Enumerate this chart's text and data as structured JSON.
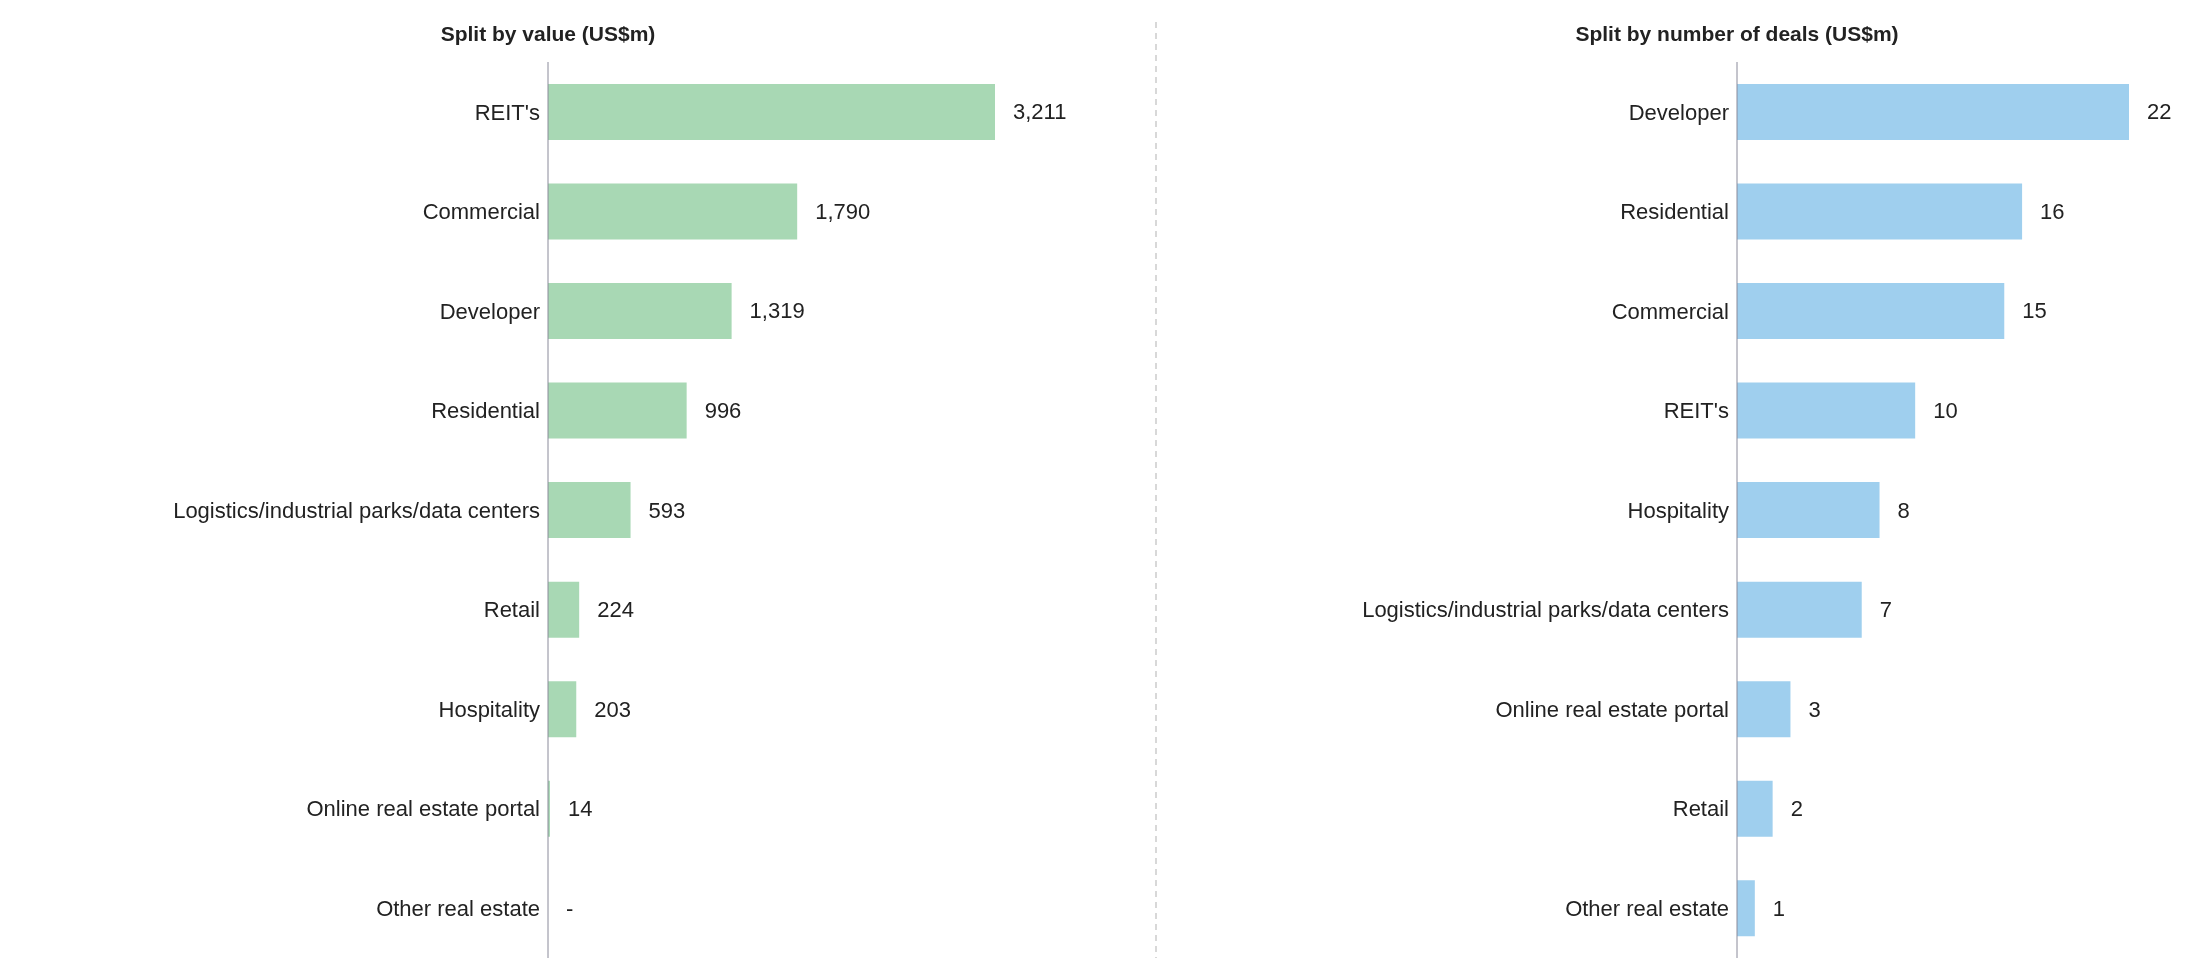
{
  "chart_data": [
    {
      "type": "bar",
      "orientation": "horizontal",
      "title": "Split by value (US$m)",
      "categories": [
        "REIT's",
        "Commercial",
        "Developer",
        "Residential",
        "Logistics/industrial parks/data centers",
        "Retail",
        "Hospitality",
        "Online real estate portal",
        "Other real estate"
      ],
      "values": [
        3211,
        1790,
        1319,
        996,
        593,
        224,
        203,
        14,
        0
      ],
      "value_labels": [
        "3,211",
        "1,790",
        "1,319",
        "996",
        "593",
        "224",
        "203",
        "14",
        "-"
      ],
      "color": "#a8d8b4"
    },
    {
      "type": "bar",
      "orientation": "horizontal",
      "title": "Split by number of deals (US$m)",
      "categories": [
        "Developer",
        "Residential",
        "Commercial",
        "REIT's",
        "Hospitality",
        "Logistics/industrial parks/data centers",
        "Online real estate portal",
        "Retail",
        "Other real estate"
      ],
      "values": [
        22,
        16,
        15,
        10,
        8,
        7,
        3,
        2,
        1
      ],
      "data_labels": true,
      "color": "#9fcfee"
    }
  ]
}
